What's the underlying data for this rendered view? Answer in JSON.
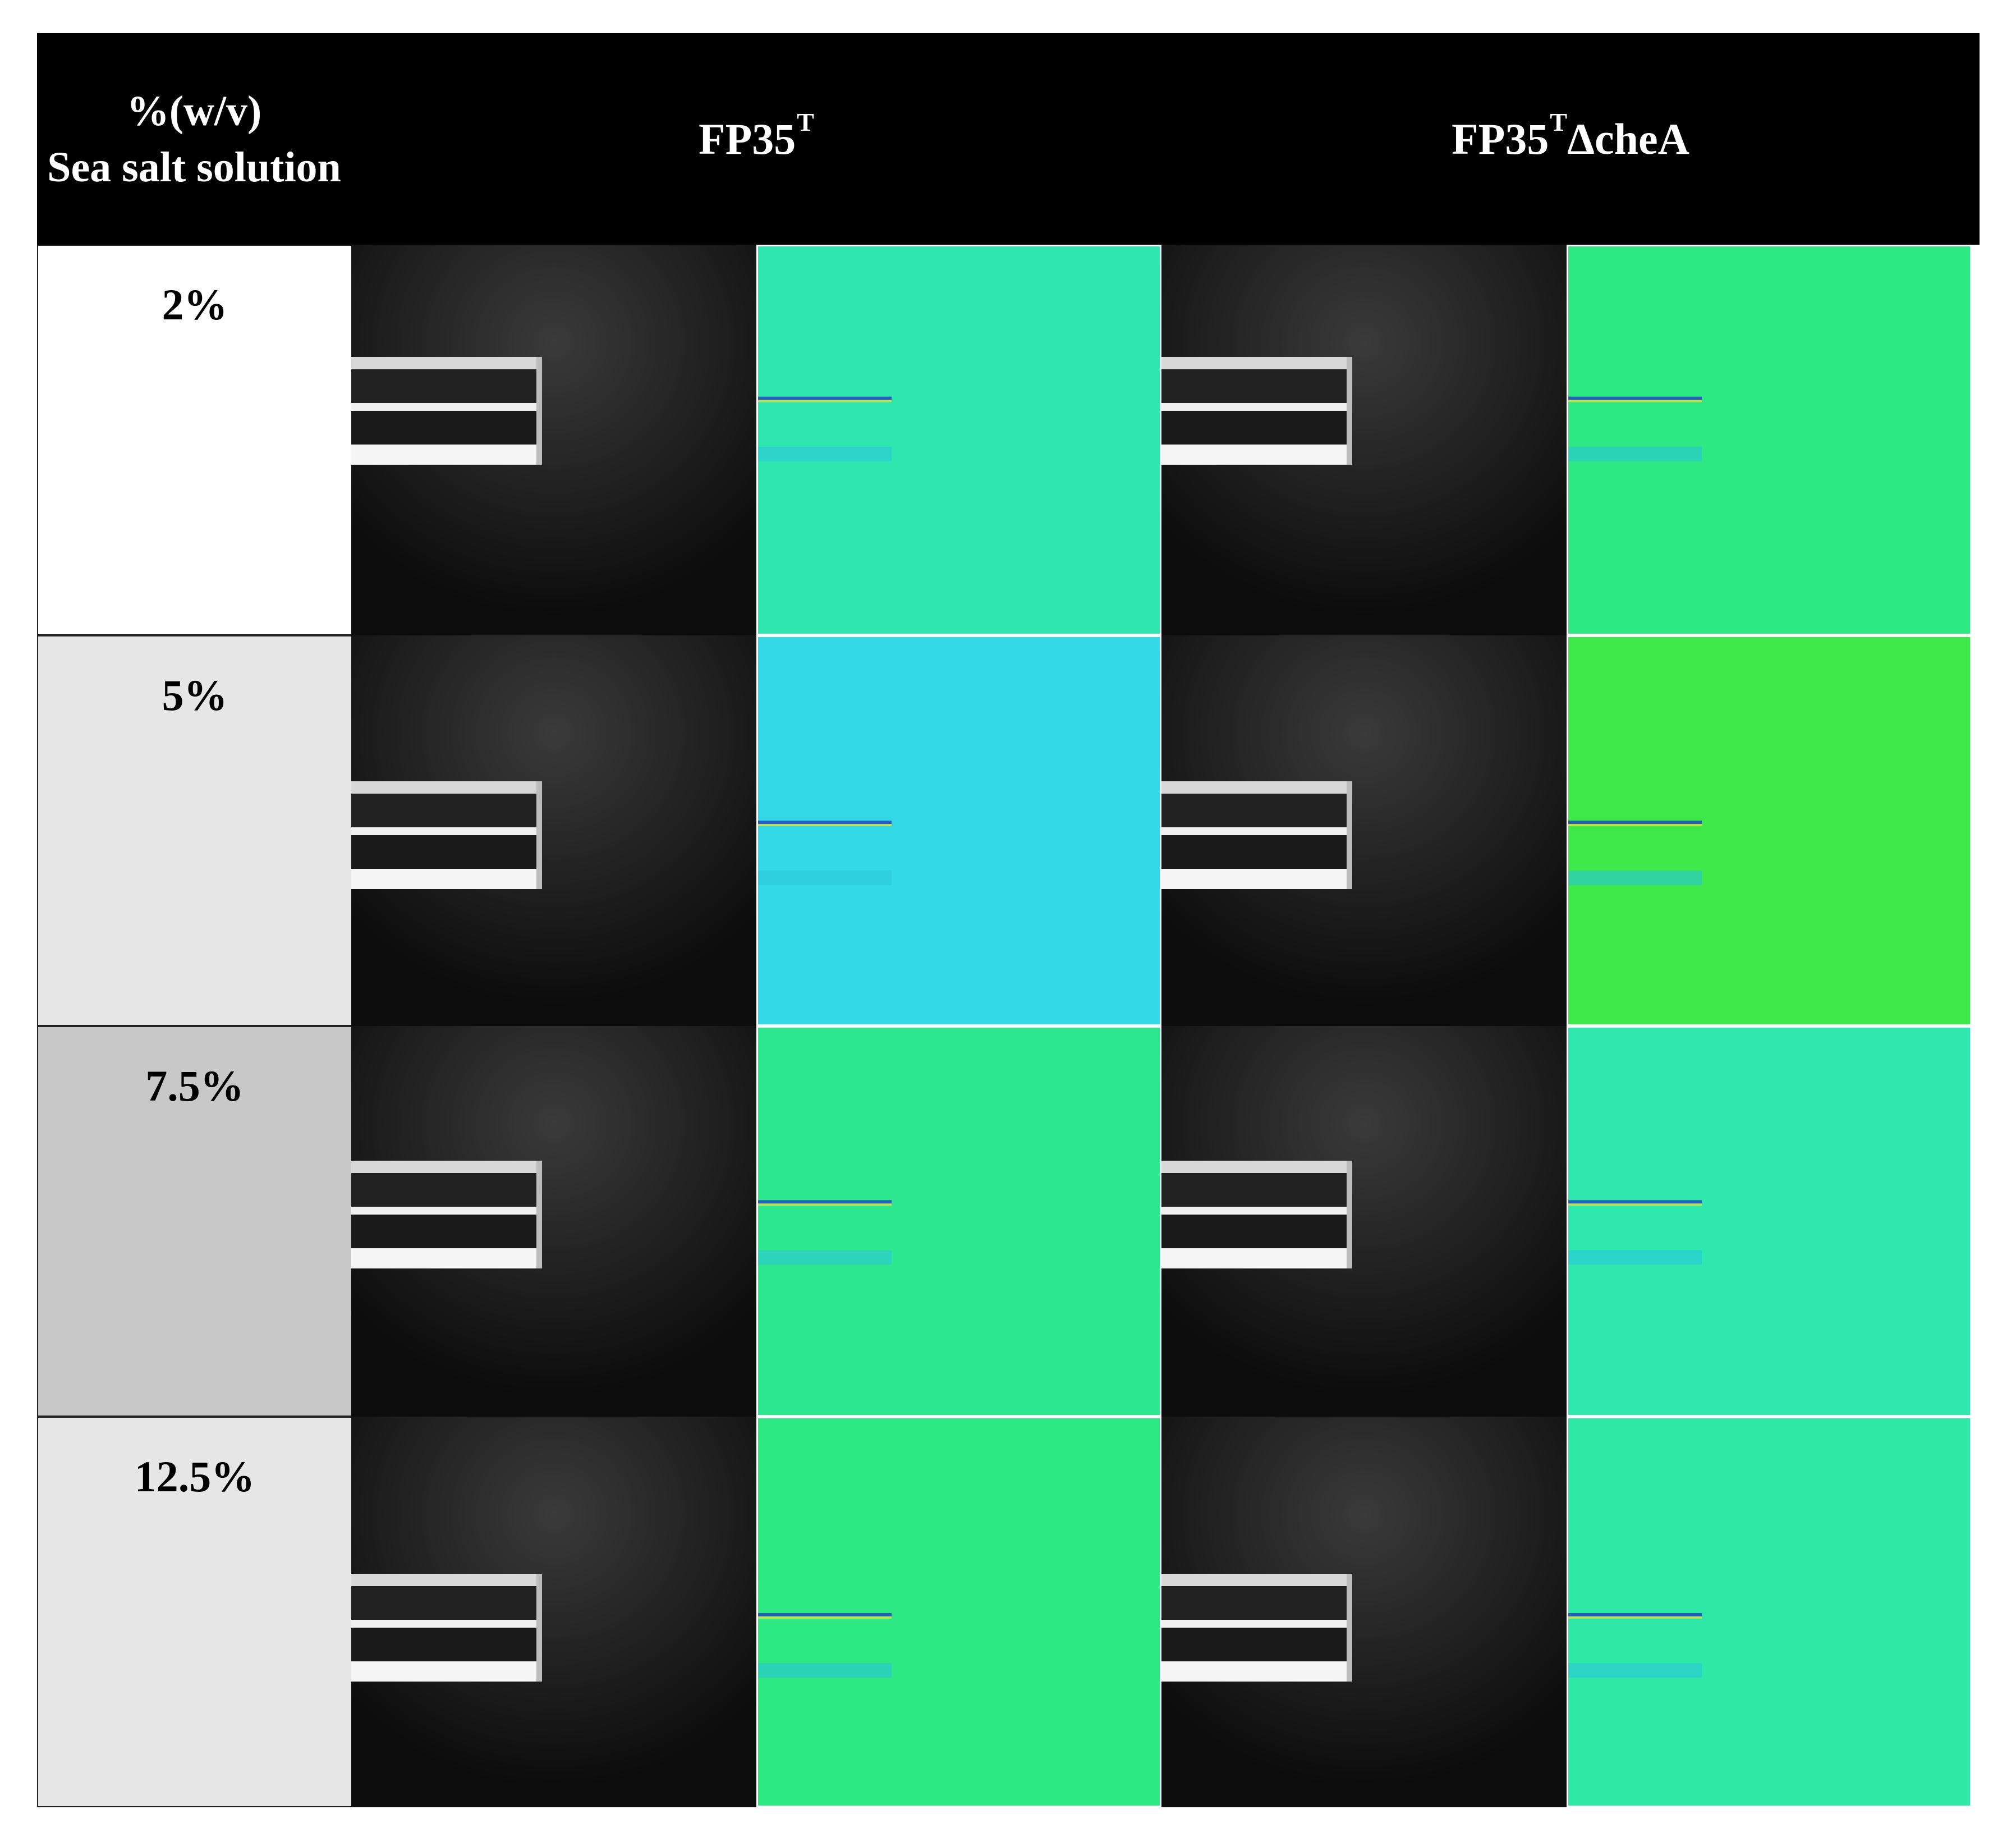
{
  "header": {
    "first_col_line1": "%(w/v)",
    "first_col_line2": "Sea salt solution",
    "strain_1": {
      "base": "FP35",
      "sup": "T",
      "suffix": ""
    },
    "strain_2": {
      "base": "FP35",
      "sup": "T",
      "suffix": "ΔcheA"
    }
  },
  "rows": [
    {
      "concentration": "2%",
      "label_bg": "#ffffff",
      "fp35_color": "#2ee6ae",
      "chea_color": "#2ee884"
    },
    {
      "concentration": "5%",
      "label_bg": "#e6e6e6",
      "fp35_color": "#33d9e6",
      "chea_color": "#3ee84a"
    },
    {
      "concentration": "7.5%",
      "label_bg": "#c8c8c8",
      "fp35_color": "#2ee88f",
      "chea_color": "#2ee8ae"
    },
    {
      "concentration": "12.5%",
      "label_bg": "#e6e6e6",
      "fp35_color": "#2ee884",
      "chea_color": "#2ee8a8"
    }
  ],
  "colors": {
    "header_bg": "#000000",
    "header_text": "#ffffff",
    "capillary": "#f2f2f2"
  }
}
